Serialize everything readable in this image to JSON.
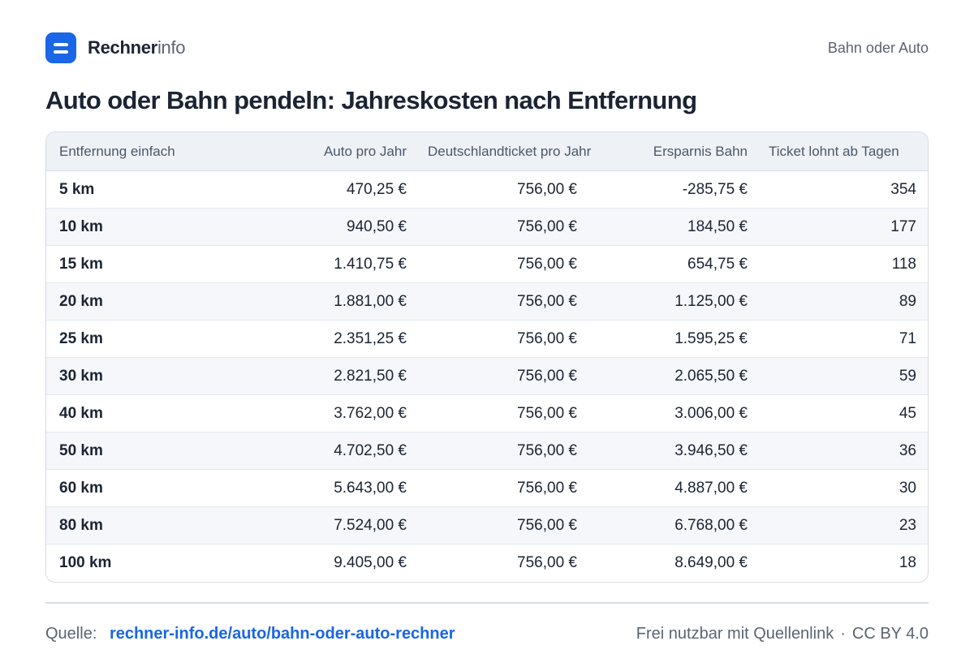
{
  "brand": {
    "name_strong": "Rechner",
    "name_light": "info",
    "icon": "logo-equals-icon",
    "accent": "#1a66e6"
  },
  "header": {
    "tag": "Bahn oder Auto"
  },
  "title": "Auto oder Bahn pendeln: Jahreskosten nach Entfernung",
  "table": {
    "columns": [
      "Entfernung einfach",
      "Auto pro Jahr",
      "Deutschlandticket pro Jahr",
      "Ersparnis Bahn",
      "Ticket lohnt ab Tagen"
    ],
    "rows": [
      [
        "5 km",
        "470,25 €",
        "756,00 €",
        "-285,75 €",
        "354"
      ],
      [
        "10 km",
        "940,50 €",
        "756,00 €",
        "184,50 €",
        "177"
      ],
      [
        "15 km",
        "1.410,75 €",
        "756,00 €",
        "654,75 €",
        "118"
      ],
      [
        "20 km",
        "1.881,00 €",
        "756,00 €",
        "1.125,00 €",
        "89"
      ],
      [
        "25 km",
        "2.351,25 €",
        "756,00 €",
        "1.595,25 €",
        "71"
      ],
      [
        "30 km",
        "2.821,50 €",
        "756,00 €",
        "2.065,50 €",
        "59"
      ],
      [
        "40 km",
        "3.762,00 €",
        "756,00 €",
        "3.006,00 €",
        "45"
      ],
      [
        "50 km",
        "4.702,50 €",
        "756,00 €",
        "3.946,50 €",
        "36"
      ],
      [
        "60 km",
        "5.643,00 €",
        "756,00 €",
        "4.887,00 €",
        "30"
      ],
      [
        "80 km",
        "7.524,00 €",
        "756,00 €",
        "6.768,00 €",
        "23"
      ],
      [
        "100 km",
        "9.405,00 €",
        "756,00 €",
        "8.649,00 €",
        "18"
      ]
    ]
  },
  "footer": {
    "source_label": "Quelle:",
    "source_link": "rechner-info.de/auto/bahn-oder-auto-rechner",
    "usage": "Frei nutzbar mit Quellenlink",
    "separator": "·",
    "license": "CC BY 4.0"
  }
}
